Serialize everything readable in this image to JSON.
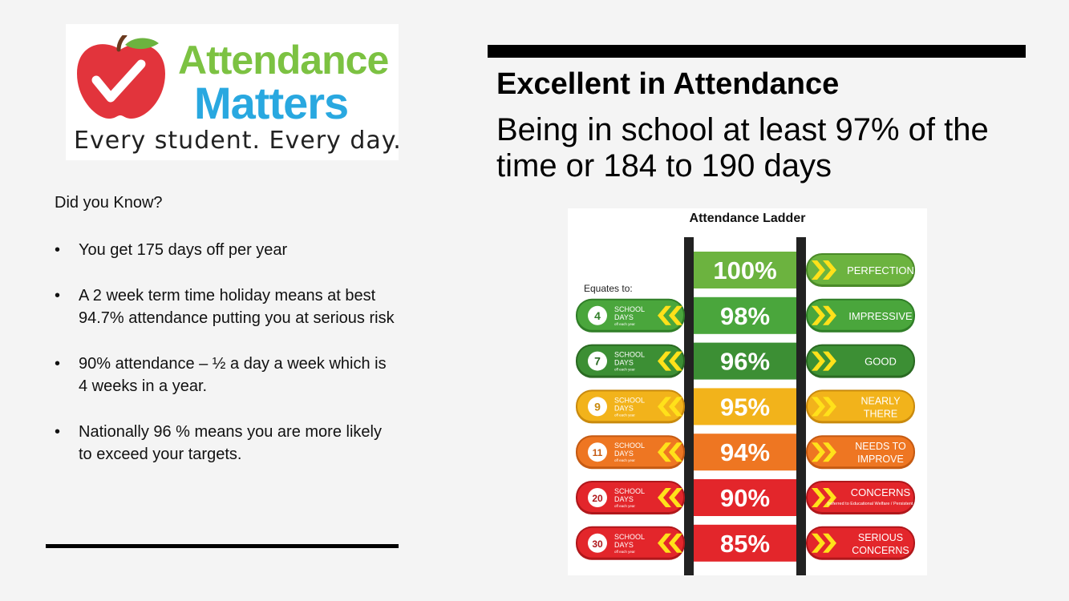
{
  "logo": {
    "line1": "Attendance",
    "line2": "Matters",
    "tagline": "Every student. Every day."
  },
  "intro": "Did you Know?",
  "bullets": [
    "You get 175 days off per year",
    "A 2 week term time holiday means at best 94.7% attendance putting you at serious risk",
    "90% attendance – ½ a day a week which is 4 weeks in a year.",
    "Nationally 96 % means you are more likely to exceed your targets."
  ],
  "heading": "Excellent in Attendance",
  "subheading": "Being in school at least 97% of the time or 184 to 190 days",
  "ladder": {
    "title": "Attendance Ladder",
    "equates_label": "Equates to:",
    "school_label": "SCHOOL",
    "days_label": "DAYS",
    "off_label": "off each year",
    "rows": [
      {
        "percent": "100%",
        "days": "",
        "status": [
          "PERFECTION"
        ],
        "note": "",
        "color": "#6cb33f",
        "dark": "#4a8a28"
      },
      {
        "percent": "98%",
        "days": "4",
        "status": [
          "IMPRESSIVE"
        ],
        "note": "",
        "color": "#4aa63c",
        "dark": "#2f7e27"
      },
      {
        "percent": "96%",
        "days": "7",
        "status": [
          "GOOD"
        ],
        "note": "",
        "color": "#3c8f34",
        "dark": "#2a6a22"
      },
      {
        "percent": "95%",
        "days": "9",
        "status": [
          "NEARLY",
          "THERE"
        ],
        "note": "",
        "color": "#f2b31b",
        "dark": "#c98a0d"
      },
      {
        "percent": "94%",
        "days": "11",
        "status": [
          "NEEDS TO",
          "IMPROVE"
        ],
        "note": "",
        "color": "#ee7622",
        "dark": "#c55a12"
      },
      {
        "percent": "90%",
        "days": "20",
        "status": [
          "CONCERNS"
        ],
        "note": "(referred to Educational Welfare / Persistent absentee)",
        "color": "#e3262b",
        "dark": "#b0171b"
      },
      {
        "percent": "85%",
        "days": "30",
        "status": [
          "SERIOUS",
          "CONCERNS"
        ],
        "note": "",
        "color": "#e3262b",
        "dark": "#b0171b"
      }
    ]
  }
}
